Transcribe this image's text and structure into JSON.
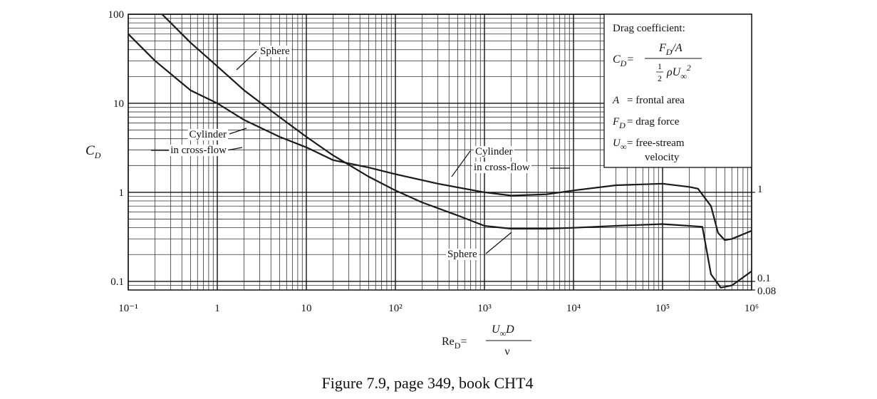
{
  "chart_data": {
    "type": "line",
    "xscale": "log",
    "yscale": "log",
    "grid": true,
    "minor_grid": true,
    "xlim": [
      0.1,
      1000000
    ],
    "ylim": [
      0.08,
      100
    ],
    "xticks": [
      {
        "value": 0.1,
        "label": "10⁻¹"
      },
      1,
      10,
      {
        "value": 100,
        "label": "10²"
      },
      {
        "value": 1000,
        "label": "10³"
      },
      {
        "value": 10000,
        "label": "10⁴"
      },
      {
        "value": 100000,
        "label": "10⁵"
      },
      {
        "value": 1000000,
        "label": "10⁶"
      }
    ],
    "yticks": [
      0.1,
      1,
      10,
      100
    ],
    "y2lim": [
      0.08,
      100
    ],
    "y2ticks": [
      0.08,
      0.1,
      1
    ],
    "ylabel": {
      "symbol": "C",
      "sub": "D"
    },
    "xlabel": {
      "symbol": "Re",
      "sub": "D",
      "eq": "=",
      "num": "U",
      "num_sub": "∞",
      "num_rest": "D",
      "den": "ν"
    },
    "series": [
      {
        "color": "#1a1a1a",
        "x": [
          0.24,
          0.5,
          1,
          2,
          5,
          10,
          20,
          50,
          100,
          200,
          500,
          1000,
          2000,
          5000,
          10000,
          30000,
          100000,
          200000,
          280000,
          350000,
          450000,
          600000,
          1000000
        ],
        "values": [
          100,
          48,
          26,
          14,
          7,
          4.2,
          2.6,
          1.5,
          1.05,
          0.77,
          0.55,
          0.42,
          0.39,
          0.39,
          0.4,
          0.42,
          0.44,
          0.42,
          0.41,
          0.12,
          0.085,
          0.09,
          0.13
        ]
      },
      {
        "color": "#1a1a1a",
        "x": [
          0.1,
          0.2,
          0.5,
          1,
          2,
          5,
          10,
          20,
          50,
          100,
          300,
          1000,
          2000,
          5000,
          10000,
          30000,
          100000,
          200000,
          250000,
          350000,
          420000,
          500000,
          600000,
          1000000
        ],
        "values": [
          60,
          30,
          14,
          10,
          6.5,
          4.2,
          3.2,
          2.3,
          1.9,
          1.6,
          1.25,
          1.0,
          0.92,
          0.95,
          1.05,
          1.2,
          1.25,
          1.15,
          1.1,
          0.7,
          0.35,
          0.29,
          0.3,
          0.37
        ]
      }
    ],
    "annotations": [
      {
        "lines": [
          "Sphere"
        ]
      },
      {
        "lines": [
          "Cylinder",
          "in cross-flow"
        ]
      },
      {
        "lines": [
          "Cylinder",
          "in cross-flow"
        ]
      },
      {
        "lines": [
          "Sphere"
        ]
      }
    ],
    "key": {
      "title": "Drag coefficient:",
      "formula": {
        "lhs": "C",
        "lhs_sub": "D",
        "eq": "=",
        "num": "F",
        "num_sub": "D",
        "num_rest": "/A",
        "half_num": "1",
        "half_den": "2",
        "den": "ρU",
        "den_sub": "∞",
        "den_sup": "2"
      },
      "definitions": [
        {
          "symbol": "A",
          "lines": [
            "= frontal area"
          ]
        },
        {
          "symbol": "F",
          "sub": "D",
          "lines": [
            "= drag force"
          ]
        },
        {
          "symbol": "U",
          "sub": "∞",
          "lines": [
            "= free-stream",
            "velocity"
          ]
        }
      ]
    }
  },
  "caption": "Figure 7.9, page 349, book CHT4"
}
